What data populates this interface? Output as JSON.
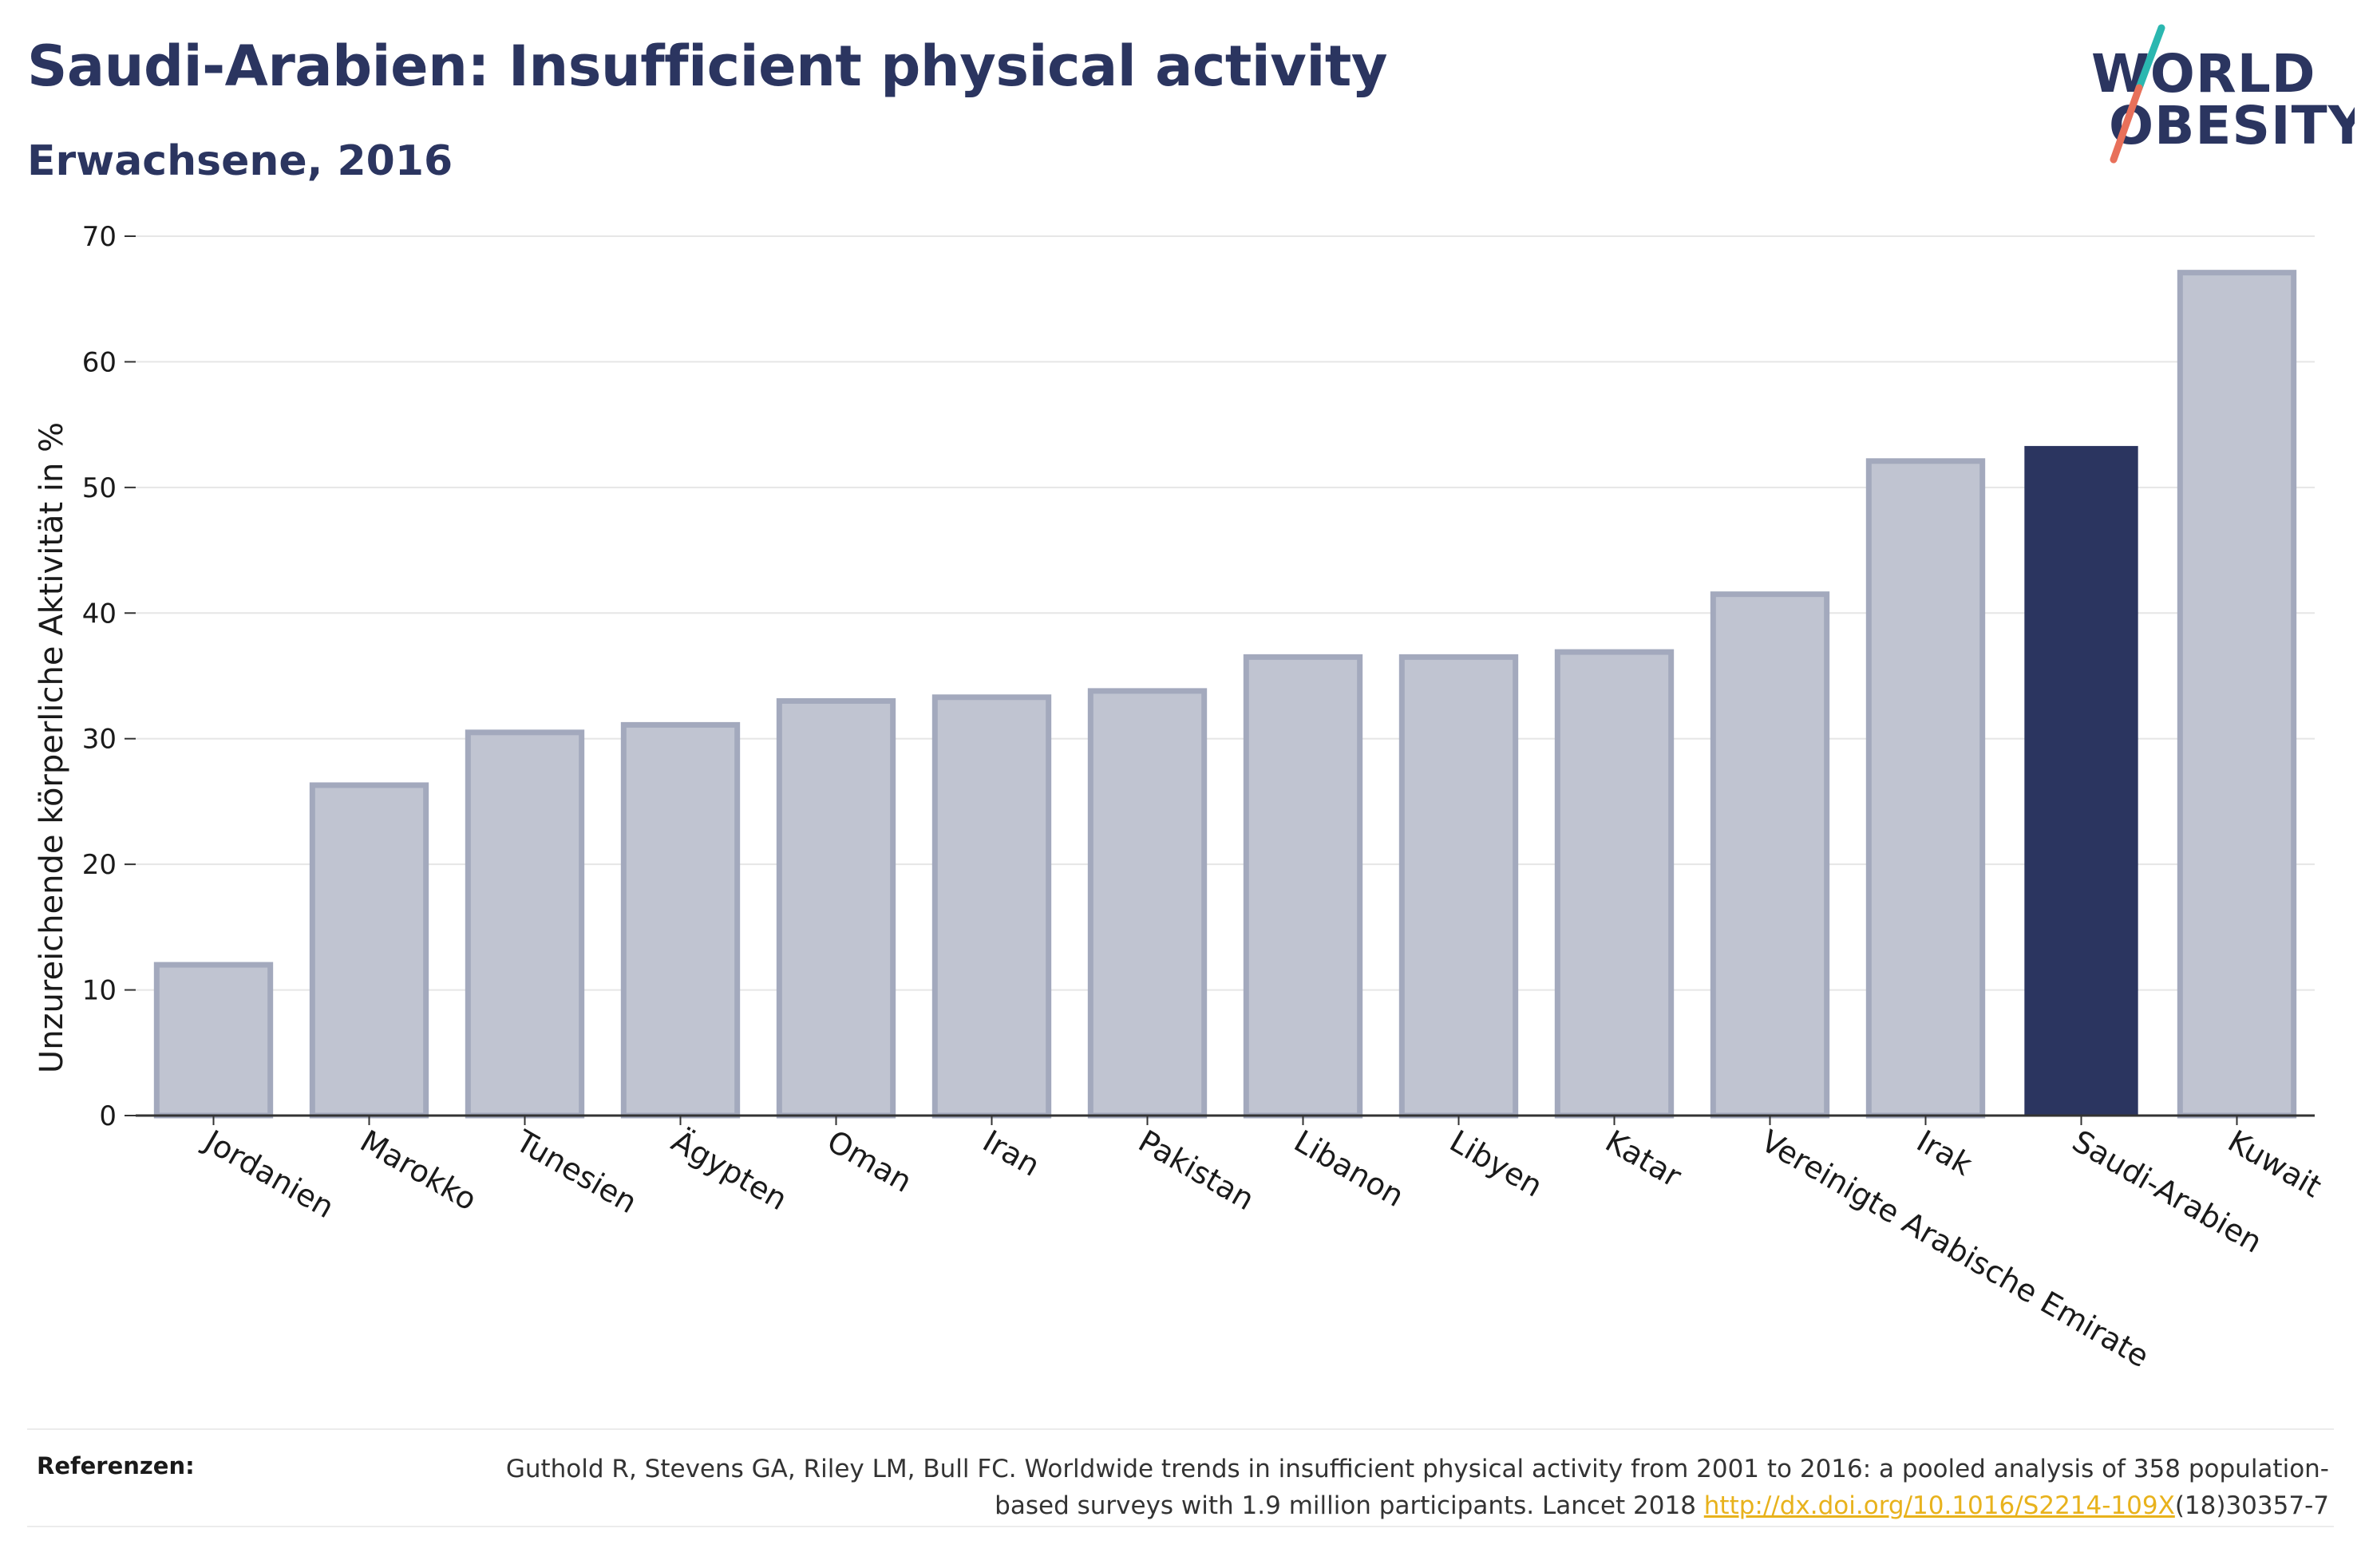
{
  "header": {
    "title": "Saudi-Arabien: Insufficient physical activity",
    "subtitle": "Erwachsene, 2016"
  },
  "logo": {
    "line1": "WORLD",
    "line2": "OBESITY",
    "colors": {
      "text": "#2b3560",
      "slash_top": "#2bb7b0",
      "slash_bottom": "#e8705a"
    }
  },
  "chart_data": {
    "type": "bar",
    "title": "Saudi-Arabien: Insufficient physical activity",
    "subtitle": "Erwachsene, 2016",
    "xlabel": "",
    "ylabel": "Unzureichende körperliche Aktivität in %",
    "ylim": [
      0,
      70
    ],
    "yticks": [
      0,
      10,
      20,
      30,
      40,
      50,
      60,
      70
    ],
    "grid": true,
    "categories": [
      "Jordanien",
      "Marokko",
      "Tunesien",
      "Ägypten",
      "Oman",
      "Iran",
      "Pakistan",
      "Libanon",
      "Libyen",
      "Katar",
      "Vereinigte Arabische Emirate",
      "Irak",
      "Saudi-Arabien",
      "Kuwait"
    ],
    "values": [
      12.0,
      26.3,
      30.5,
      31.1,
      33.0,
      33.3,
      33.8,
      36.5,
      36.5,
      36.9,
      41.5,
      52.1,
      53.3,
      67.1
    ],
    "highlight": "Saudi-Arabien",
    "colors": {
      "bar": "#c0c4d1",
      "bar_edge": "#a3a9bd",
      "highlight": "#2b3560",
      "grid": "#e6e6e6",
      "axis": "#333333"
    }
  },
  "footer": {
    "label": "Referenzen:",
    "text_before": "Guthold R, Stevens GA, Riley LM, Bull FC. Worldwide trends in insufficient physical activity from 2001 to 2016: a pooled analysis of 358 population-based surveys with 1.9 million participants. Lancet 2018 ",
    "link": "http://dx.doi.org/10.1016/S2214-109X",
    "text_after": "(18)30357-7"
  }
}
